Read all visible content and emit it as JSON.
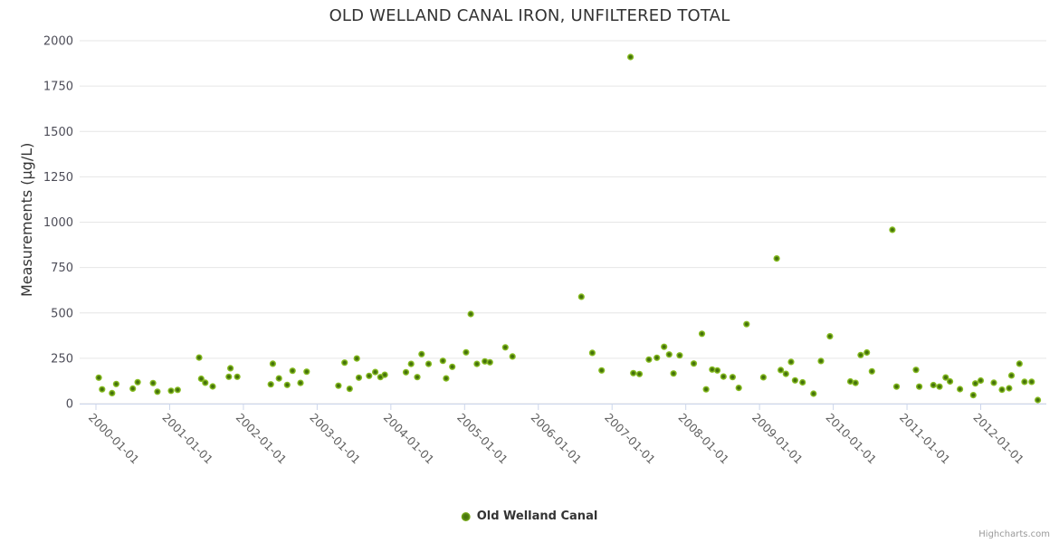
{
  "title": {
    "text": "OLD WELLAND CANAL IRON, UNFILTERED TOTAL"
  },
  "legend": {
    "label": "Old Welland Canal"
  },
  "credits": {
    "text": "Highcharts.com"
  },
  "colors": {
    "marker_outer": "#8cc32b",
    "marker_mid": "#83b71d",
    "marker_core": "#44710c",
    "grid_line": "#e6e6e6",
    "axis_line": "#ccd6eb",
    "title_text": "#333333",
    "y_tick_label": "#4d4d58",
    "x_tick_label": "#606060",
    "credits_text": "#999999"
  },
  "chart_data": {
    "type": "scatter",
    "title": "OLD WELLAND CANAL IRON, UNFILTERED TOTAL",
    "xlabel": "",
    "ylabel": "Measurements (µg/L)",
    "ylim": [
      0,
      2000
    ],
    "yticks": [
      0,
      250,
      500,
      750,
      1000,
      1250,
      1500,
      1750,
      2000
    ],
    "xticks": [
      "2000-01-01",
      "2001-01-01",
      "2002-01-01",
      "2003-01-01",
      "2004-01-01",
      "2005-01-01",
      "2006-01-01",
      "2007-01-01",
      "2008-01-01",
      "2009-01-01",
      "2010-01-01",
      "2011-01-01",
      "2012-01-01"
    ],
    "grid": "horizontal",
    "legend_position": "bottom-center",
    "series": [
      {
        "name": "Old Welland Canal",
        "color": "#83b71d",
        "data": [
          [
            "2000-01-15",
            143
          ],
          [
            "2000-02-01",
            79
          ],
          [
            "2000-03-20",
            58
          ],
          [
            "2000-04-10",
            108
          ],
          [
            "2000-07-01",
            83
          ],
          [
            "2000-07-25",
            118
          ],
          [
            "2000-10-10",
            113
          ],
          [
            "2000-11-01",
            66
          ],
          [
            "2001-01-08",
            71
          ],
          [
            "2001-02-10",
            76
          ],
          [
            "2001-05-25",
            254
          ],
          [
            "2001-06-05",
            137
          ],
          [
            "2001-06-25",
            115
          ],
          [
            "2001-08-01",
            95
          ],
          [
            "2001-10-20",
            148
          ],
          [
            "2001-10-28",
            195
          ],
          [
            "2001-12-01",
            148
          ],
          [
            "2002-05-15",
            106
          ],
          [
            "2002-05-25",
            220
          ],
          [
            "2002-06-25",
            139
          ],
          [
            "2002-08-05",
            103
          ],
          [
            "2002-09-01",
            181
          ],
          [
            "2002-10-10",
            114
          ],
          [
            "2002-11-10",
            176
          ],
          [
            "2003-04-15",
            99
          ],
          [
            "2003-05-15",
            226
          ],
          [
            "2003-06-10",
            82
          ],
          [
            "2003-07-15",
            249
          ],
          [
            "2003-07-25",
            143
          ],
          [
            "2003-09-15",
            153
          ],
          [
            "2003-10-15",
            174
          ],
          [
            "2003-11-10",
            146
          ],
          [
            "2003-12-01",
            159
          ],
          [
            "2004-03-15",
            173
          ],
          [
            "2004-04-10",
            219
          ],
          [
            "2004-05-10",
            146
          ],
          [
            "2004-06-01",
            273
          ],
          [
            "2004-07-05",
            219
          ],
          [
            "2004-09-15",
            236
          ],
          [
            "2004-10-01",
            139
          ],
          [
            "2004-11-01",
            203
          ],
          [
            "2005-01-08",
            283
          ],
          [
            "2005-02-01",
            494
          ],
          [
            "2005-03-01",
            219
          ],
          [
            "2005-04-10",
            233
          ],
          [
            "2005-05-05",
            228
          ],
          [
            "2005-07-20",
            310
          ],
          [
            "2005-08-25",
            260
          ],
          [
            "2006-08-01",
            589
          ],
          [
            "2006-09-25",
            280
          ],
          [
            "2006-11-10",
            183
          ],
          [
            "2007-04-01",
            1910
          ],
          [
            "2007-04-15",
            168
          ],
          [
            "2007-05-15",
            163
          ],
          [
            "2007-07-01",
            243
          ],
          [
            "2007-08-10",
            253
          ],
          [
            "2007-09-15",
            313
          ],
          [
            "2007-10-10",
            271
          ],
          [
            "2007-11-01",
            166
          ],
          [
            "2007-12-01",
            266
          ],
          [
            "2008-02-10",
            221
          ],
          [
            "2008-03-20",
            385
          ],
          [
            "2008-04-10",
            79
          ],
          [
            "2008-05-10",
            188
          ],
          [
            "2008-06-05",
            183
          ],
          [
            "2008-07-05",
            149
          ],
          [
            "2008-08-20",
            146
          ],
          [
            "2008-09-20",
            87
          ],
          [
            "2008-10-28",
            438
          ],
          [
            "2009-01-20",
            145
          ],
          [
            "2009-03-25",
            800
          ],
          [
            "2009-04-15",
            185
          ],
          [
            "2009-05-10",
            164
          ],
          [
            "2009-06-05",
            230
          ],
          [
            "2009-06-25",
            128
          ],
          [
            "2009-08-01",
            117
          ],
          [
            "2009-09-25",
            55
          ],
          [
            "2009-11-01",
            235
          ],
          [
            "2009-12-15",
            371
          ],
          [
            "2010-03-25",
            122
          ],
          [
            "2010-04-20",
            114
          ],
          [
            "2010-05-15",
            268
          ],
          [
            "2010-06-15",
            282
          ],
          [
            "2010-07-10",
            178
          ],
          [
            "2010-10-20",
            958
          ],
          [
            "2010-11-10",
            94
          ],
          [
            "2011-02-15",
            186
          ],
          [
            "2011-03-01",
            94
          ],
          [
            "2011-05-10",
            102
          ],
          [
            "2011-06-10",
            94
          ],
          [
            "2011-07-10",
            144
          ],
          [
            "2011-08-01",
            122
          ],
          [
            "2011-09-20",
            80
          ],
          [
            "2011-11-25",
            47
          ],
          [
            "2011-12-05",
            111
          ],
          [
            "2012-01-01",
            127
          ],
          [
            "2012-03-05",
            115
          ],
          [
            "2012-04-15",
            77
          ],
          [
            "2012-05-20",
            85
          ],
          [
            "2012-06-01",
            155
          ],
          [
            "2012-07-10",
            220
          ],
          [
            "2012-08-05",
            120
          ],
          [
            "2012-09-10",
            120
          ],
          [
            "2012-10-10",
            20
          ]
        ]
      }
    ]
  }
}
